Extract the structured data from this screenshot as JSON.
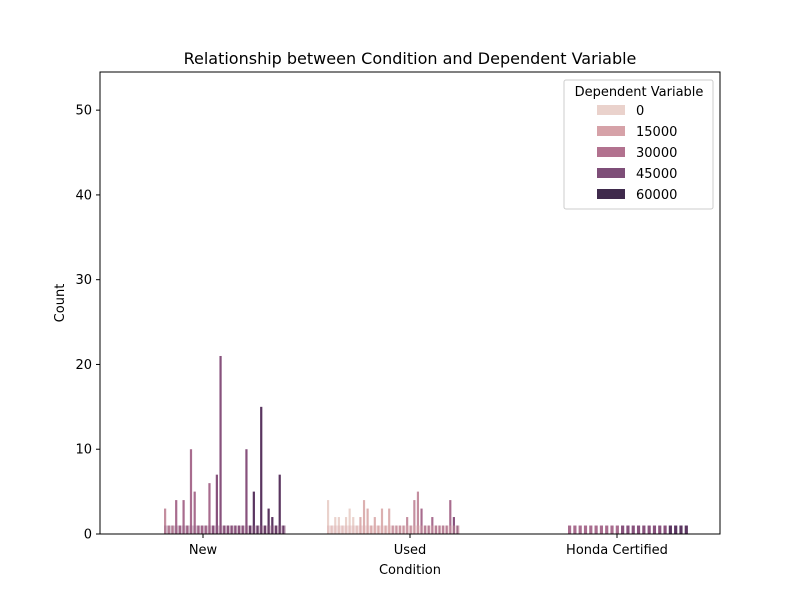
{
  "chart_data": {
    "type": "bar",
    "title": "Relationship between Condition and Dependent Variable",
    "xlabel": "Condition",
    "ylabel": "Count",
    "categories": [
      "New",
      "Used",
      "Honda Certified"
    ],
    "ylim": [
      0,
      54.5
    ],
    "yticks": [
      0,
      10,
      20,
      30,
      40,
      50
    ],
    "grid": false,
    "legend": {
      "title": "Dependent Variable",
      "placement": "top-right",
      "entries": [
        {
          "label": "0",
          "color": "#ead2cc"
        },
        {
          "label": "15000",
          "color": "#d6a2a8"
        },
        {
          "label": "30000",
          "color": "#b2728f"
        },
        {
          "label": "45000",
          "color": "#7e4e78"
        },
        {
          "label": "60000",
          "color": "#3f2a4c"
        }
      ]
    },
    "series_note_counts": {
      "New": [
        3,
        1,
        1,
        4,
        1,
        4,
        1,
        10,
        5,
        1,
        1,
        1,
        6,
        1,
        7,
        21,
        1,
        1,
        1,
        1,
        1,
        1,
        10,
        1,
        5,
        1,
        15,
        1,
        3,
        2,
        1,
        7,
        1
      ],
      "Used": [
        4,
        1,
        2,
        2,
        1,
        2,
        3,
        2,
        1,
        2,
        4,
        3,
        1,
        2,
        1,
        3,
        1,
        3,
        1,
        1,
        1,
        1,
        2,
        1,
        4,
        5,
        3,
        1,
        1,
        2,
        1,
        1,
        1,
        1,
        4,
        2,
        1
      ],
      "Honda Certified": [
        1,
        1,
        1,
        1,
        1,
        1,
        1,
        1,
        1,
        1,
        1,
        1,
        1,
        1,
        1,
        1,
        1,
        1,
        1,
        1,
        1,
        1,
        1
      ]
    }
  }
}
